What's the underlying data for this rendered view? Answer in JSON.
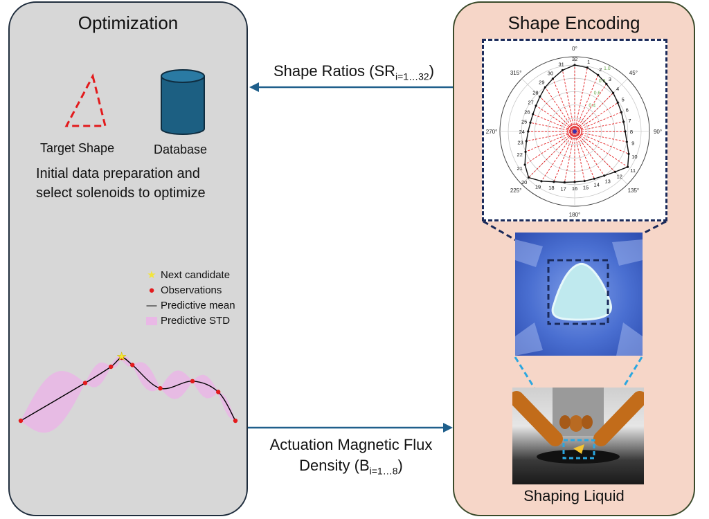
{
  "optimization": {
    "title": "Optimization",
    "target_shape_label": "Target Shape",
    "database_label": "Database",
    "description_line1": "Initial data preparation and",
    "description_line2": "select solenoids to optimize",
    "legend": [
      {
        "label": "Next candidate",
        "icon": "star-icon",
        "color": "#f3e53a"
      },
      {
        "label": "Observations",
        "icon": "dot-icon",
        "color": "#e31a1c"
      },
      {
        "label": "Predictive mean",
        "icon": "line-icon",
        "color": "#000000"
      },
      {
        "label": "Predictive STD",
        "icon": "band-icon",
        "color": "#e9b8e6"
      }
    ]
  },
  "encoding": {
    "title": "Shape Encoding",
    "shaping_label": "Shaping Liquid",
    "polar": {
      "angle_labels": [
        "0°",
        "45°",
        "90°",
        "135°",
        "180°",
        "225°",
        "270°",
        "315°"
      ],
      "radial_labels": [
        "1.0",
        "0.8",
        "0.6",
        "0.4"
      ],
      "point_labels": [
        "1",
        "2",
        "3",
        "4",
        "5",
        "6",
        "7",
        "8",
        "9",
        "10",
        "11",
        "12",
        "13",
        "14",
        "15",
        "16",
        "17",
        "18",
        "19",
        "20",
        "21",
        "22",
        "23",
        "24",
        "25",
        "26",
        "27",
        "28",
        "29",
        "30",
        "31",
        "32"
      ],
      "radii": [
        0.98,
        0.92,
        0.86,
        0.82,
        0.78,
        0.76,
        0.75,
        0.76,
        0.8,
        0.88,
        0.96,
        0.86,
        0.8,
        0.77,
        0.76,
        0.76,
        0.78,
        0.82,
        0.9,
        0.98,
        0.9,
        0.8,
        0.74,
        0.7,
        0.68,
        0.68,
        0.7,
        0.74,
        0.8,
        0.86,
        0.94,
        1.0
      ]
    }
  },
  "arrows": {
    "shape_ratios_text": "Shape Ratios (SR",
    "shape_ratios_sub": "i=1…32",
    "shape_ratios_close": ")",
    "flux_line1": "Actuation Magnetic Flux",
    "flux_line2_text": "Density (B",
    "flux_line2_sub": "i=1…8",
    "flux_line2_close": ")"
  },
  "colors": {
    "arrow": "#1f5f8b",
    "database": "#1c5f82",
    "target": "#e31a1c",
    "inset_dark": "#1a2a5a",
    "inset_light": "#2aa7e0"
  },
  "chart_data": {
    "type": "line",
    "x": [
      0.0,
      0.3,
      0.42,
      0.47,
      0.52,
      0.65,
      0.8,
      0.92,
      1.0
    ],
    "observations": [
      0.2,
      0.62,
      0.8,
      0.9,
      0.82,
      0.56,
      0.64,
      0.52,
      0.2
    ],
    "next_candidate": {
      "x": 0.47,
      "y": 0.92
    },
    "series": [
      {
        "name": "Predictive mean"
      },
      {
        "name": "Predictive STD"
      }
    ]
  }
}
